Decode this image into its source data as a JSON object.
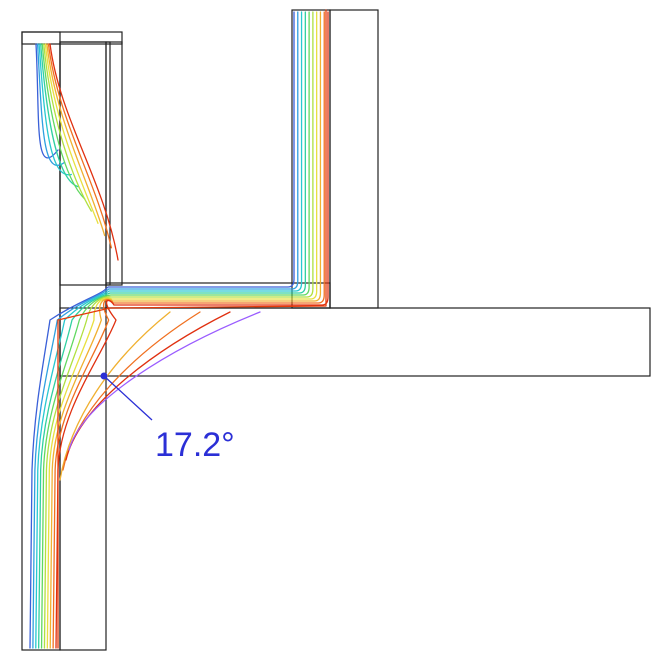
{
  "annotation": {
    "text": "17.2°",
    "color": "#2b2fd6"
  },
  "colors": {
    "outline": "#222222",
    "hatch": "#333333",
    "isotherms": [
      "#3a60d8",
      "#2fa0e0",
      "#28c8d0",
      "#30d0a0",
      "#60d860",
      "#b0e040",
      "#e8e040",
      "#f0b030",
      "#f07020",
      "#e03010"
    ]
  }
}
